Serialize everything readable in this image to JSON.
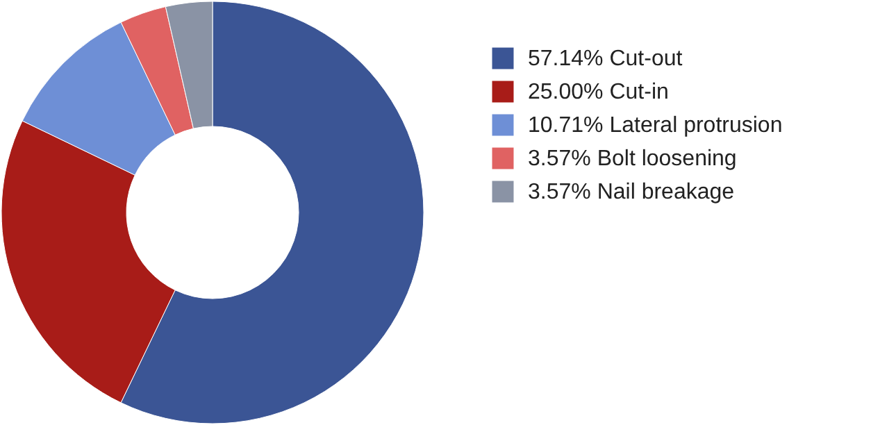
{
  "chart_data": {
    "type": "donut",
    "categories": [
      "Cut-out",
      "Cut-in",
      "Lateral protrusion",
      "Bolt loosening",
      "Nail breakage"
    ],
    "values": [
      57.14,
      25.0,
      10.71,
      3.57,
      3.57
    ],
    "value_labels": [
      "57.14%",
      "25.00%",
      "10.71%",
      "3.57%",
      "3.57%"
    ],
    "colors": [
      "#3b5595",
      "#a81c18",
      "#6e8fd6",
      "#e06262",
      "#8a93a5"
    ],
    "legend": "right"
  }
}
